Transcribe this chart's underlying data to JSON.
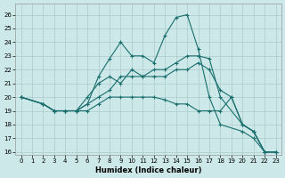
{
  "xlabel": "Humidex (Indice chaleur)",
  "xlim": [
    -0.5,
    23.5
  ],
  "ylim": [
    15.8,
    26.8
  ],
  "yticks": [
    16,
    17,
    18,
    19,
    20,
    21,
    22,
    23,
    24,
    25,
    26
  ],
  "xticks": [
    0,
    1,
    2,
    3,
    4,
    5,
    6,
    7,
    8,
    9,
    10,
    11,
    12,
    13,
    14,
    15,
    16,
    17,
    18,
    19,
    20,
    21,
    22,
    23
  ],
  "background_color": "#cce8e8",
  "grid_color": "#aacccc",
  "line_color": "#1a6e6e",
  "lines": [
    {
      "x": [
        0,
        2,
        3,
        4,
        5,
        6,
        7,
        8,
        9,
        10,
        11,
        12,
        13,
        14,
        15,
        16,
        17,
        18,
        20,
        21,
        22,
        23
      ],
      "y": [
        20.0,
        19.5,
        19.0,
        19.0,
        19.0,
        19.5,
        21.5,
        22.8,
        24.0,
        23.0,
        23.0,
        22.5,
        24.5,
        25.8,
        26.0,
        23.5,
        20.0,
        18.0,
        17.5,
        17.0,
        16.0,
        16.0
      ]
    },
    {
      "x": [
        0,
        2,
        3,
        4,
        5,
        6,
        7,
        8,
        9,
        10,
        11,
        12,
        13,
        14,
        15,
        16,
        17,
        18,
        20,
        21,
        22,
        23
      ],
      "y": [
        20.0,
        19.5,
        19.0,
        19.0,
        19.0,
        20.0,
        21.0,
        21.5,
        21.0,
        22.0,
        21.5,
        22.0,
        22.0,
        22.5,
        23.0,
        23.0,
        22.8,
        20.0,
        18.0,
        17.5,
        16.0,
        16.0
      ]
    },
    {
      "x": [
        0,
        2,
        3,
        4,
        5,
        6,
        7,
        8,
        9,
        10,
        11,
        12,
        13,
        14,
        15,
        16,
        17,
        18,
        19,
        20,
        21,
        22,
        23
      ],
      "y": [
        20.0,
        19.5,
        19.0,
        19.0,
        19.0,
        19.5,
        20.0,
        20.5,
        21.5,
        21.5,
        21.5,
        21.5,
        21.5,
        22.0,
        22.0,
        22.5,
        22.0,
        20.5,
        20.0,
        18.0,
        17.5,
        16.0,
        16.0
      ]
    },
    {
      "x": [
        0,
        2,
        3,
        4,
        5,
        6,
        7,
        8,
        9,
        10,
        11,
        12,
        13,
        14,
        15,
        16,
        17,
        18,
        19,
        20,
        21,
        22,
        23
      ],
      "y": [
        20.0,
        19.5,
        19.0,
        19.0,
        19.0,
        19.0,
        19.5,
        20.0,
        20.0,
        20.0,
        20.0,
        20.0,
        19.8,
        19.5,
        19.5,
        19.0,
        19.0,
        19.0,
        20.0,
        18.0,
        17.5,
        16.0,
        16.0
      ]
    }
  ]
}
